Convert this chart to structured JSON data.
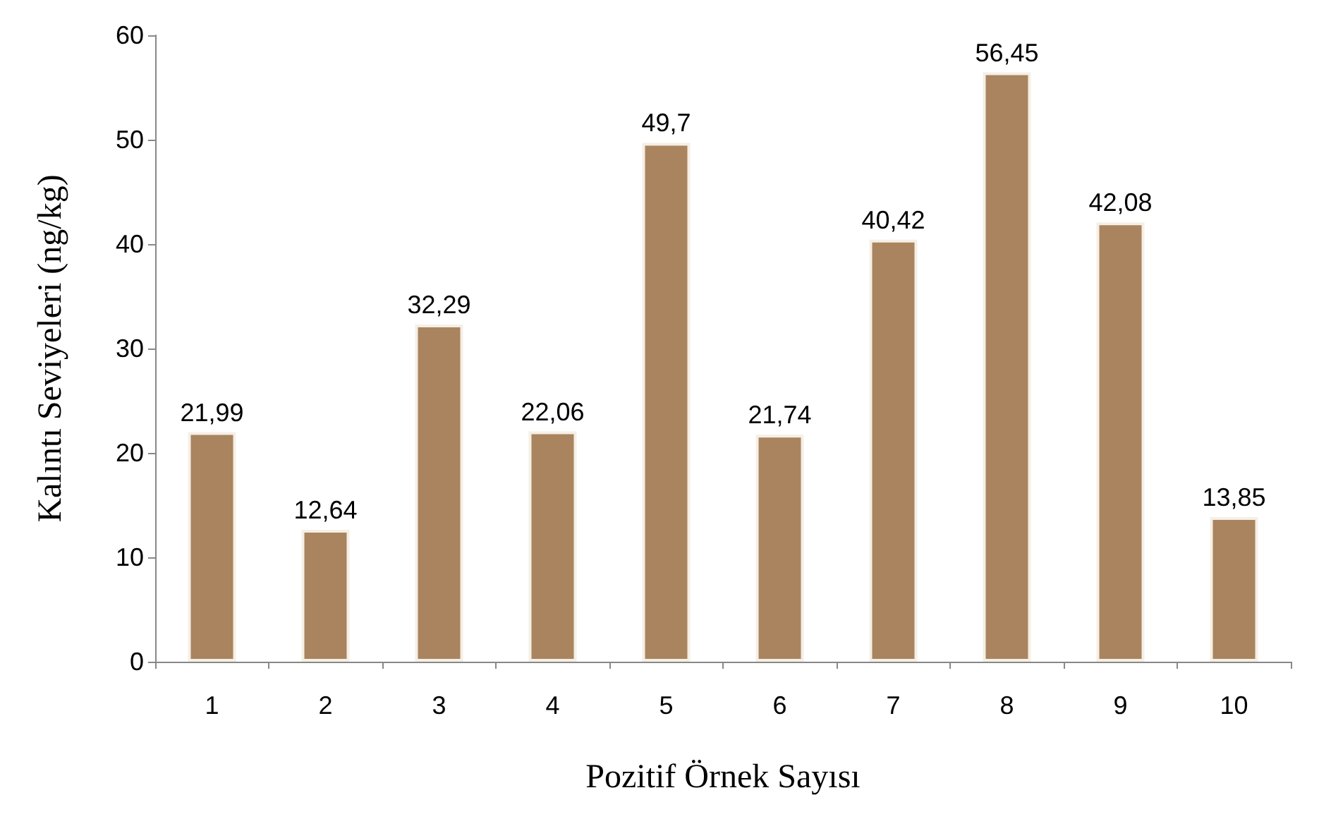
{
  "chart_data": {
    "type": "bar",
    "xlabel": "Pozitif Örnek Sayısı",
    "ylabel": "Kalıntı Seviyeleri (ng/kg)",
    "categories": [
      "1",
      "2",
      "3",
      "4",
      "5",
      "6",
      "7",
      "8",
      "9",
      "10"
    ],
    "values": [
      21.99,
      12.64,
      32.29,
      22.06,
      49.7,
      21.74,
      40.42,
      56.45,
      42.08,
      13.85
    ],
    "value_labels": [
      "21,99",
      "12,64",
      "32,29",
      "22,06",
      "49,7",
      "21,74",
      "40,42",
      "56,45",
      "42,08",
      "13,85"
    ],
    "color": "#a9845e",
    "ylim": [
      0,
      60
    ],
    "yticks": [
      0,
      10,
      20,
      30,
      40,
      50,
      60
    ],
    "grid": false
  }
}
